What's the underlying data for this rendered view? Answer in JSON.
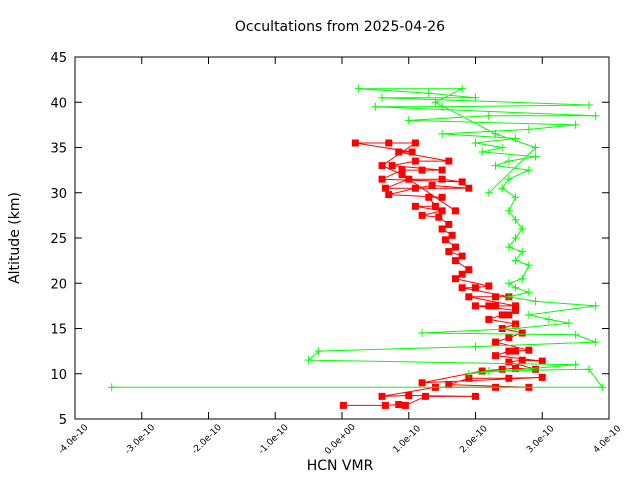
{
  "chart_data": {
    "type": "scatter",
    "title": "Occultations from 2025-04-26",
    "xlabel": "HCN VMR",
    "ylabel": "Altitude (km)",
    "xlim": [
      -4e-10,
      4e-10
    ],
    "ylim": [
      5,
      45
    ],
    "x_ticks": [
      {
        "value": -4e-10,
        "label": "-4.0e-10"
      },
      {
        "value": -3e-10,
        "label": "-3.0e-10"
      },
      {
        "value": -2e-10,
        "label": "-2.0e-10"
      },
      {
        "value": -1e-10,
        "label": "-1.0e-10"
      },
      {
        "value": 0.0,
        "label": "0.0e+00"
      },
      {
        "value": 1e-10,
        "label": "1.0e-10"
      },
      {
        "value": 2e-10,
        "label": "2.0e-10"
      },
      {
        "value": 3e-10,
        "label": "3.0e-10"
      },
      {
        "value": 4e-10,
        "label": "4.0e-10"
      }
    ],
    "y_ticks": [
      {
        "value": 5,
        "label": "5"
      },
      {
        "value": 10,
        "label": "10"
      },
      {
        "value": 15,
        "label": "15"
      },
      {
        "value": 20,
        "label": "20"
      },
      {
        "value": 25,
        "label": "25"
      },
      {
        "value": 30,
        "label": "30"
      },
      {
        "value": 35,
        "label": "35"
      },
      {
        "value": 40,
        "label": "40"
      },
      {
        "value": 45,
        "label": "45"
      }
    ],
    "grid": false,
    "legend": "none",
    "series": [
      {
        "name": "occultation-red",
        "color": "#ff0000",
        "marker": "square",
        "points": [
          [
            2e-12,
            6.5
          ],
          [
            6.5e-11,
            6.5
          ],
          [
            8.5e-11,
            6.6
          ],
          [
            9.5e-11,
            6.5
          ],
          [
            1.25e-10,
            7.5
          ],
          [
            2e-10,
            7.5
          ],
          [
            1e-10,
            7.6
          ],
          [
            6e-11,
            7.5
          ],
          [
            1.4e-10,
            8.5
          ],
          [
            2.3e-10,
            8.5
          ],
          [
            2.8e-10,
            8.5
          ],
          [
            1.6e-10,
            8.8
          ],
          [
            1.9e-10,
            9.5
          ],
          [
            2.5e-10,
            9.5
          ],
          [
            3e-10,
            9.6
          ],
          [
            1.2e-10,
            9.0
          ],
          [
            2.1e-10,
            10.3
          ],
          [
            2.4e-10,
            10.5
          ],
          [
            2.6e-10,
            10.6
          ],
          [
            2.9e-10,
            10.5
          ],
          [
            2.5e-10,
            11.3
          ],
          [
            2.7e-10,
            11.5
          ],
          [
            3e-10,
            11.4
          ],
          [
            2.3e-10,
            12.0
          ],
          [
            2.5e-10,
            12.5
          ],
          [
            2.6e-10,
            12.5
          ],
          [
            2.8e-10,
            12.6
          ],
          [
            2.3e-10,
            13.5
          ],
          [
            2.5e-10,
            14.0
          ],
          [
            2.7e-10,
            14.5
          ],
          [
            2.4e-10,
            15.0
          ],
          [
            2.6e-10,
            15.5
          ],
          [
            2.2e-10,
            16.0
          ],
          [
            2.4e-10,
            16.5
          ],
          [
            2.5e-10,
            16.5
          ],
          [
            2.6e-10,
            17.0
          ],
          [
            2e-10,
            17.5
          ],
          [
            2.2e-10,
            17.5
          ],
          [
            2.3e-10,
            17.5
          ],
          [
            2.6e-10,
            17.5
          ],
          [
            1.9e-10,
            18.5
          ],
          [
            2.3e-10,
            18.5
          ],
          [
            2.5e-10,
            18.5
          ],
          [
            1.8e-10,
            19.5
          ],
          [
            2e-10,
            19.5
          ],
          [
            2.2e-10,
            19.7
          ],
          [
            1.7e-10,
            20.5
          ],
          [
            1.8e-10,
            21.0
          ],
          [
            1.9e-10,
            21.5
          ],
          [
            1.7e-10,
            22.5
          ],
          [
            1.8e-10,
            23.0
          ],
          [
            1.6e-10,
            23.5
          ],
          [
            1.7e-10,
            24.0
          ],
          [
            1.55e-10,
            24.8
          ],
          [
            1.65e-10,
            25.3
          ],
          [
            1.5e-10,
            26.0
          ],
          [
            1.6e-10,
            26.5
          ],
          [
            1.45e-10,
            27.3
          ],
          [
            1.2e-10,
            27.5
          ],
          [
            1.5e-10,
            28.0
          ],
          [
            1.1e-10,
            28.5
          ],
          [
            1.4e-10,
            28.5
          ],
          [
            1.3e-10,
            29.5
          ],
          [
            1.5e-10,
            29.5
          ],
          [
            7e-11,
            29.8
          ],
          [
            1.1e-10,
            30.5
          ],
          [
            1.35e-10,
            30.8
          ],
          [
            1.9e-10,
            30.5
          ],
          [
            6.5e-11,
            30.5
          ],
          [
            1e-10,
            31.5
          ],
          [
            1.5e-10,
            31.5
          ],
          [
            1.8e-10,
            31.2
          ],
          [
            6e-11,
            31.5
          ],
          [
            9e-11,
            32.5
          ],
          [
            1.2e-10,
            32.5
          ],
          [
            1.5e-10,
            32.5
          ],
          [
            7.5e-11,
            33.0
          ],
          [
            1.1e-10,
            33.5
          ],
          [
            1.6e-10,
            33.5
          ],
          [
            8.5e-11,
            34.5
          ],
          [
            1.05e-10,
            34.5
          ],
          [
            2e-11,
            35.5
          ],
          [
            7e-11,
            35.5
          ],
          [
            1.1e-10,
            35.5
          ],
          [
            6e-11,
            33.0
          ],
          [
            9e-11,
            32.0
          ],
          [
            1.7e-10,
            28.0
          ]
        ]
      },
      {
        "name": "occultation-green",
        "color": "#00ff00",
        "marker": "plus",
        "points": [
          [
            -3.45e-10,
            8.5
          ],
          [
            3.9e-10,
            8.5
          ],
          [
            3.7e-10,
            10.5
          ],
          [
            2.2e-10,
            10.3
          ],
          [
            1.9e-10,
            10.0
          ],
          [
            3.5e-10,
            11.0
          ],
          [
            -5e-11,
            11.5
          ],
          [
            -3.5e-11,
            12.5
          ],
          [
            2e-10,
            13.0
          ],
          [
            3.8e-10,
            13.5
          ],
          [
            3.5e-10,
            14.3
          ],
          [
            1.2e-10,
            14.5
          ],
          [
            2.6e-10,
            15.0
          ],
          [
            3.4e-10,
            15.6
          ],
          [
            3.1e-10,
            16.0
          ],
          [
            2.8e-10,
            16.5
          ],
          [
            3.8e-10,
            17.5
          ],
          [
            2.9e-10,
            18.0
          ],
          [
            2.5e-10,
            18.5
          ],
          [
            2.8e-10,
            19.0
          ],
          [
            2.6e-10,
            19.5
          ],
          [
            2.5e-10,
            20.0
          ],
          [
            2.7e-10,
            20.5
          ],
          [
            2.8e-10,
            22.0
          ],
          [
            2.6e-10,
            22.5
          ],
          [
            2.7e-10,
            23.5
          ],
          [
            2.5e-10,
            24.0
          ],
          [
            2.6e-10,
            25.0
          ],
          [
            2.7e-10,
            26.0
          ],
          [
            2.6e-10,
            27.0
          ],
          [
            2.5e-10,
            28.0
          ],
          [
            2.6e-10,
            29.5
          ],
          [
            2.4e-10,
            30.5
          ],
          [
            2.5e-10,
            31.5
          ],
          [
            2.8e-10,
            32.5
          ],
          [
            2.3e-10,
            33.0
          ],
          [
            2.5e-10,
            33.5
          ],
          [
            2.9e-10,
            34.0
          ],
          [
            2.1e-10,
            34.5
          ],
          [
            2.4e-10,
            35.0
          ],
          [
            2e-10,
            35.5
          ],
          [
            2.6e-10,
            36.0
          ],
          [
            1.5e-10,
            36.5
          ],
          [
            2.8e-10,
            37.0
          ],
          [
            3.5e-10,
            37.5
          ],
          [
            1e-10,
            38.0
          ],
          [
            2.2e-10,
            38.5
          ],
          [
            3.8e-10,
            38.5
          ],
          [
            5e-11,
            39.5
          ],
          [
            1.5e-10,
            39.5
          ],
          [
            3.7e-10,
            39.7
          ],
          [
            6e-11,
            40.5
          ],
          [
            2e-10,
            40.5
          ],
          [
            1.3e-10,
            41.0
          ],
          [
            2.5e-11,
            41.5
          ],
          [
            1.8e-10,
            41.5
          ],
          [
            1.4e-10,
            40.0
          ],
          [
            2.3e-10,
            36.5
          ],
          [
            2.9e-10,
            35.0
          ],
          [
            2.2e-10,
            30.0
          ]
        ]
      }
    ]
  }
}
